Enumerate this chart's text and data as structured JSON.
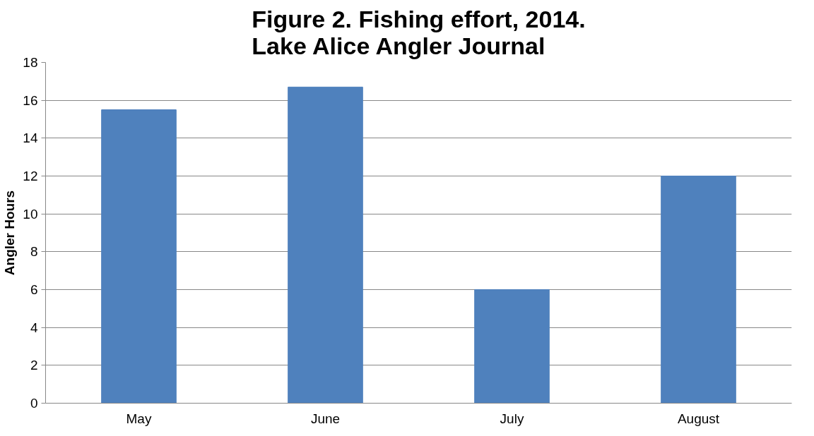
{
  "chart_data": {
    "type": "bar",
    "title": "Figure 2. Fishing effort, 2014.\nLake Alice Angler Journal",
    "ylabel": "Angler Hours",
    "categories": [
      "May",
      "June",
      "July",
      "August"
    ],
    "values": [
      15.5,
      16.7,
      6,
      12
    ],
    "color": "#4f81bd",
    "ylim": [
      0,
      18
    ],
    "yticks": [
      0,
      2,
      4,
      6,
      8,
      10,
      12,
      14,
      16,
      18
    ],
    "grid": "y"
  }
}
